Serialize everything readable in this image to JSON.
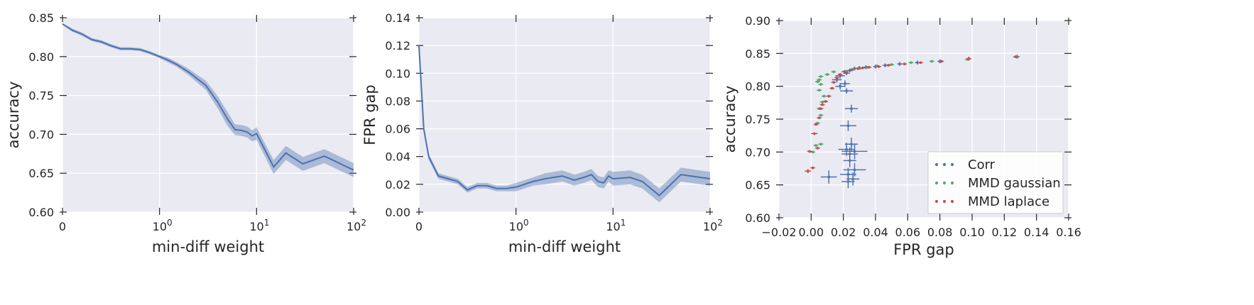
{
  "chart_data": [
    {
      "type": "line",
      "xscale": "symlog",
      "xlabel": "min-diff weight",
      "ylabel": "accuracy",
      "xlim": [
        0,
        100
      ],
      "ylim": [
        0.6,
        0.85
      ],
      "xticks": [
        {
          "value": 0,
          "base": "0",
          "exp": ""
        },
        {
          "value": 1,
          "base": "10",
          "exp": "0"
        },
        {
          "value": 10,
          "base": "10",
          "exp": "1"
        },
        {
          "value": 100,
          "base": "10",
          "exp": "2"
        }
      ],
      "yticks": [
        "0.60",
        "0.65",
        "0.70",
        "0.75",
        "0.80",
        "0.85"
      ],
      "grid": true,
      "color": "#4c72b0",
      "series": [
        {
          "x": [
            0,
            0.1,
            0.2,
            0.3,
            0.4,
            0.5,
            0.6,
            0.7,
            0.8,
            0.9,
            1.0,
            1.2,
            1.5,
            2,
            3,
            4,
            5,
            6,
            7,
            8,
            9,
            10,
            15,
            20,
            30,
            50,
            100
          ],
          "y": [
            0.842,
            0.834,
            0.829,
            0.822,
            0.819,
            0.814,
            0.81,
            0.81,
            0.809,
            0.805,
            0.8,
            0.796,
            0.79,
            0.78,
            0.763,
            0.741,
            0.72,
            0.706,
            0.705,
            0.703,
            0.698,
            0.701,
            0.658,
            0.676,
            0.662,
            0.672,
            0.654
          ],
          "ci": [
            0.001,
            0.002,
            0.002,
            0.002,
            0.002,
            0.002,
            0.002,
            0.002,
            0.002,
            0.002,
            0.002,
            0.003,
            0.003,
            0.004,
            0.006,
            0.008,
            0.009,
            0.007,
            0.007,
            0.007,
            0.007,
            0.008,
            0.009,
            0.009,
            0.009,
            0.009,
            0.009
          ]
        }
      ]
    },
    {
      "type": "line",
      "xscale": "symlog",
      "xlabel": "min-diff weight",
      "ylabel": "FPR gap",
      "xlim": [
        0,
        100
      ],
      "ylim": [
        0,
        0.14
      ],
      "xticks": [
        {
          "value": 0,
          "base": "0",
          "exp": ""
        },
        {
          "value": 1,
          "base": "10",
          "exp": "0"
        },
        {
          "value": 10,
          "base": "10",
          "exp": "1"
        },
        {
          "value": 100,
          "base": "10",
          "exp": "2"
        }
      ],
      "yticks": [
        "0.00",
        "0.02",
        "0.04",
        "0.06",
        "0.08",
        "0.10",
        "0.12",
        "0.14"
      ],
      "grid": true,
      "color": "#4c72b0",
      "series": [
        {
          "x": [
            0,
            0.05,
            0.1,
            0.2,
            0.3,
            0.4,
            0.5,
            0.6,
            0.7,
            0.8,
            0.9,
            1.0,
            1.5,
            2,
            3,
            4,
            5,
            6,
            7,
            8,
            9,
            10,
            15,
            20,
            30,
            50,
            100
          ],
          "y": [
            0.12,
            0.06,
            0.04,
            0.026,
            0.024,
            0.022,
            0.016,
            0.019,
            0.019,
            0.017,
            0.017,
            0.018,
            0.022,
            0.024,
            0.026,
            0.023,
            0.025,
            0.027,
            0.022,
            0.021,
            0.026,
            0.024,
            0.025,
            0.022,
            0.012,
            0.027,
            0.024
          ],
          "ci": [
            0.002,
            0.002,
            0.002,
            0.002,
            0.002,
            0.002,
            0.002,
            0.002,
            0.002,
            0.002,
            0.002,
            0.003,
            0.003,
            0.004,
            0.004,
            0.004,
            0.004,
            0.004,
            0.004,
            0.004,
            0.004,
            0.005,
            0.005,
            0.005,
            0.005,
            0.005,
            0.005
          ]
        }
      ]
    },
    {
      "type": "scatter",
      "xlabel": "FPR gap",
      "ylabel": "accuracy",
      "xlim": [
        -0.02,
        0.16
      ],
      "ylim": [
        0.6,
        0.9
      ],
      "xticks": [
        "−0.02",
        "0.00",
        "0.02",
        "0.04",
        "0.06",
        "0.08",
        "0.10",
        "0.12",
        "0.14",
        "0.16"
      ],
      "yticks": [
        "0.60",
        "0.65",
        "0.70",
        "0.75",
        "0.80",
        "0.85",
        "0.90"
      ],
      "grid": true,
      "legend": "lower-right",
      "series": [
        {
          "name": "Corr",
          "color": "#4c72b0",
          "points": [
            [
              0.128,
              0.845,
              0.0015,
              0.003
            ],
            [
              0.098,
              0.842,
              0.0015,
              0.003
            ],
            [
              0.08,
              0.838,
              0.0015,
              0.003
            ],
            [
              0.066,
              0.836,
              0.0015,
              0.003
            ],
            [
              0.055,
              0.834,
              0.0015,
              0.003
            ],
            [
              0.046,
              0.832,
              0.0015,
              0.003
            ],
            [
              0.04,
              0.83,
              0.0015,
              0.003
            ],
            [
              0.034,
              0.829,
              0.0015,
              0.003
            ],
            [
              0.03,
              0.828,
              0.0015,
              0.003
            ],
            [
              0.027,
              0.827,
              0.0015,
              0.003
            ],
            [
              0.024,
              0.824,
              0.002,
              0.003
            ],
            [
              0.021,
              0.822,
              0.002,
              0.003
            ],
            [
              0.022,
              0.82,
              0.002,
              0.003
            ],
            [
              0.018,
              0.816,
              0.003,
              0.004
            ],
            [
              0.016,
              0.81,
              0.003,
              0.004
            ],
            [
              0.021,
              0.804,
              0.003,
              0.005
            ],
            [
              0.018,
              0.8,
              0.003,
              0.005
            ],
            [
              0.022,
              0.793,
              0.004,
              0.004
            ],
            [
              0.025,
              0.766,
              0.004,
              0.006
            ],
            [
              0.023,
              0.74,
              0.005,
              0.008
            ],
            [
              0.025,
              0.712,
              0.004,
              0.01
            ],
            [
              0.022,
              0.704,
              0.005,
              0.01
            ],
            [
              0.027,
              0.701,
              0.008,
              0.012
            ],
            [
              0.024,
              0.697,
              0.005,
              0.01
            ],
            [
              0.024,
              0.687,
              0.004,
              0.01
            ],
            [
              0.027,
              0.673,
              0.007,
              0.01
            ],
            [
              0.023,
              0.666,
              0.005,
              0.01
            ],
            [
              0.026,
              0.659,
              0.004,
              0.01
            ],
            [
              0.023,
              0.655,
              0.004,
              0.01
            ],
            [
              0.011,
              0.662,
              0.005,
              0.01
            ]
          ]
        },
        {
          "name": "MMD gaussian",
          "color": "#55a868",
          "points": [
            [
              0.128,
              0.845,
              0.0015,
              0.002
            ],
            [
              0.097,
              0.841,
              0.0015,
              0.002
            ],
            [
              0.075,
              0.838,
              0.0015,
              0.002
            ],
            [
              0.062,
              0.836,
              0.0015,
              0.002
            ],
            [
              0.05,
              0.833,
              0.0015,
              0.002
            ],
            [
              0.041,
              0.831,
              0.0015,
              0.002
            ],
            [
              0.035,
              0.829,
              0.0015,
              0.002
            ],
            [
              0.03,
              0.827,
              0.0015,
              0.002
            ],
            [
              0.026,
              0.826,
              0.0015,
              0.002
            ],
            [
              0.021,
              0.823,
              0.0015,
              0.002
            ],
            [
              0.014,
              0.822,
              0.0015,
              0.002
            ],
            [
              0.01,
              0.818,
              0.0015,
              0.002
            ],
            [
              0.006,
              0.815,
              0.0015,
              0.002
            ],
            [
              0.005,
              0.81,
              0.0015,
              0.002
            ],
            [
              0.004,
              0.807,
              0.0015,
              0.002
            ],
            [
              0.006,
              0.803,
              0.0015,
              0.002
            ],
            [
              0.005,
              0.794,
              0.0015,
              0.002
            ],
            [
              0.008,
              0.785,
              0.0015,
              0.002
            ],
            [
              0.007,
              0.776,
              0.0015,
              0.002
            ],
            [
              0.005,
              0.766,
              0.0015,
              0.002
            ],
            [
              0.006,
              0.756,
              0.0015,
              0.002
            ],
            [
              0.004,
              0.744,
              0.0015,
              0.002
            ],
            [
              0.006,
              0.712,
              0.0015,
              0.002
            ],
            [
              0.003,
              0.71,
              0.0015,
              0.002
            ],
            [
              0.001,
              0.7,
              0.0015,
              0.002
            ]
          ]
        },
        {
          "name": "MMD laplace",
          "color": "#c44e52",
          "points": [
            [
              0.127,
              0.845,
              0.0015,
              0.002
            ],
            [
              0.098,
              0.842,
              0.0015,
              0.002
            ],
            [
              0.081,
              0.838,
              0.0015,
              0.002
            ],
            [
              0.068,
              0.836,
              0.0015,
              0.002
            ],
            [
              0.058,
              0.834,
              0.0015,
              0.002
            ],
            [
              0.048,
              0.832,
              0.0015,
              0.002
            ],
            [
              0.042,
              0.83,
              0.0015,
              0.002
            ],
            [
              0.036,
              0.829,
              0.0015,
              0.002
            ],
            [
              0.032,
              0.828,
              0.0015,
              0.002
            ],
            [
              0.029,
              0.827,
              0.0015,
              0.002
            ],
            [
              0.025,
              0.825,
              0.0015,
              0.002
            ],
            [
              0.021,
              0.822,
              0.0015,
              0.002
            ],
            [
              0.018,
              0.818,
              0.0015,
              0.002
            ],
            [
              0.016,
              0.813,
              0.0015,
              0.002
            ],
            [
              0.014,
              0.806,
              0.0015,
              0.002
            ],
            [
              0.013,
              0.797,
              0.0015,
              0.002
            ],
            [
              0.011,
              0.785,
              0.0015,
              0.002
            ],
            [
              0.009,
              0.777,
              0.0015,
              0.002
            ],
            [
              0.007,
              0.772,
              0.0015,
              0.002
            ],
            [
              0.006,
              0.766,
              0.0015,
              0.002
            ],
            [
              0.005,
              0.752,
              0.0015,
              0.002
            ],
            [
              0.003,
              0.742,
              0.0015,
              0.002
            ],
            [
              0.002,
              0.728,
              0.002,
              0.002
            ],
            [
              0.004,
              0.706,
              0.0015,
              0.002
            ],
            [
              -0.001,
              0.701,
              0.0015,
              0.002
            ],
            [
              0.001,
              0.676,
              0.0015,
              0.002
            ],
            [
              -0.002,
              0.671,
              0.002,
              0.003
            ]
          ]
        }
      ]
    }
  ]
}
